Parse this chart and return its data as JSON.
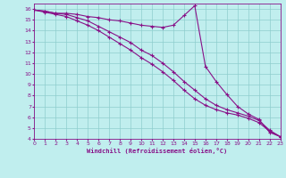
{
  "xlabel": "Windchill (Refroidissement éolien,°C)",
  "xlim": [
    0,
    23
  ],
  "ylim": [
    4,
    16.5
  ],
  "xticks": [
    0,
    1,
    2,
    3,
    4,
    5,
    6,
    7,
    8,
    9,
    10,
    11,
    12,
    13,
    14,
    15,
    16,
    17,
    18,
    19,
    20,
    21,
    22,
    23
  ],
  "yticks": [
    4,
    5,
    6,
    7,
    8,
    9,
    10,
    11,
    12,
    13,
    14,
    15,
    16
  ],
  "bg_color": "#c0eeee",
  "grid_color": "#8ecece",
  "line_color": "#881188",
  "curve1_x": [
    0,
    1,
    2,
    3,
    4,
    5,
    6,
    7,
    8,
    9,
    10,
    11,
    12,
    13,
    14,
    15,
    16,
    17,
    18,
    19,
    20,
    21,
    22,
    23
  ],
  "curve1_y": [
    15.9,
    15.8,
    15.6,
    15.6,
    15.5,
    15.3,
    15.2,
    15.0,
    14.9,
    14.7,
    14.5,
    14.4,
    14.3,
    14.5,
    15.4,
    16.3,
    10.7,
    9.3,
    8.1,
    7.0,
    6.3,
    5.8,
    4.6,
    4.2
  ],
  "curve2_x": [
    0,
    1,
    2,
    3,
    4,
    5,
    6,
    7,
    8,
    9,
    10,
    11,
    12,
    13,
    14,
    15,
    16,
    17,
    18,
    19,
    20,
    21,
    22,
    23
  ],
  "curve2_y": [
    15.9,
    15.8,
    15.6,
    15.5,
    15.2,
    14.9,
    14.4,
    13.9,
    13.4,
    12.9,
    12.2,
    11.7,
    11.0,
    10.2,
    9.3,
    8.5,
    7.7,
    7.1,
    6.7,
    6.4,
    6.1,
    5.7,
    4.8,
    4.2
  ],
  "curve3_x": [
    0,
    1,
    2,
    3,
    4,
    5,
    6,
    7,
    8,
    9,
    10,
    11,
    12,
    13,
    14,
    15,
    16,
    17,
    18,
    19,
    20,
    21,
    22,
    23
  ],
  "curve3_y": [
    15.9,
    15.7,
    15.5,
    15.3,
    14.9,
    14.5,
    14.0,
    13.4,
    12.8,
    12.2,
    11.5,
    10.9,
    10.2,
    9.4,
    8.5,
    7.7,
    7.1,
    6.7,
    6.4,
    6.2,
    5.9,
    5.5,
    4.7,
    4.2
  ]
}
